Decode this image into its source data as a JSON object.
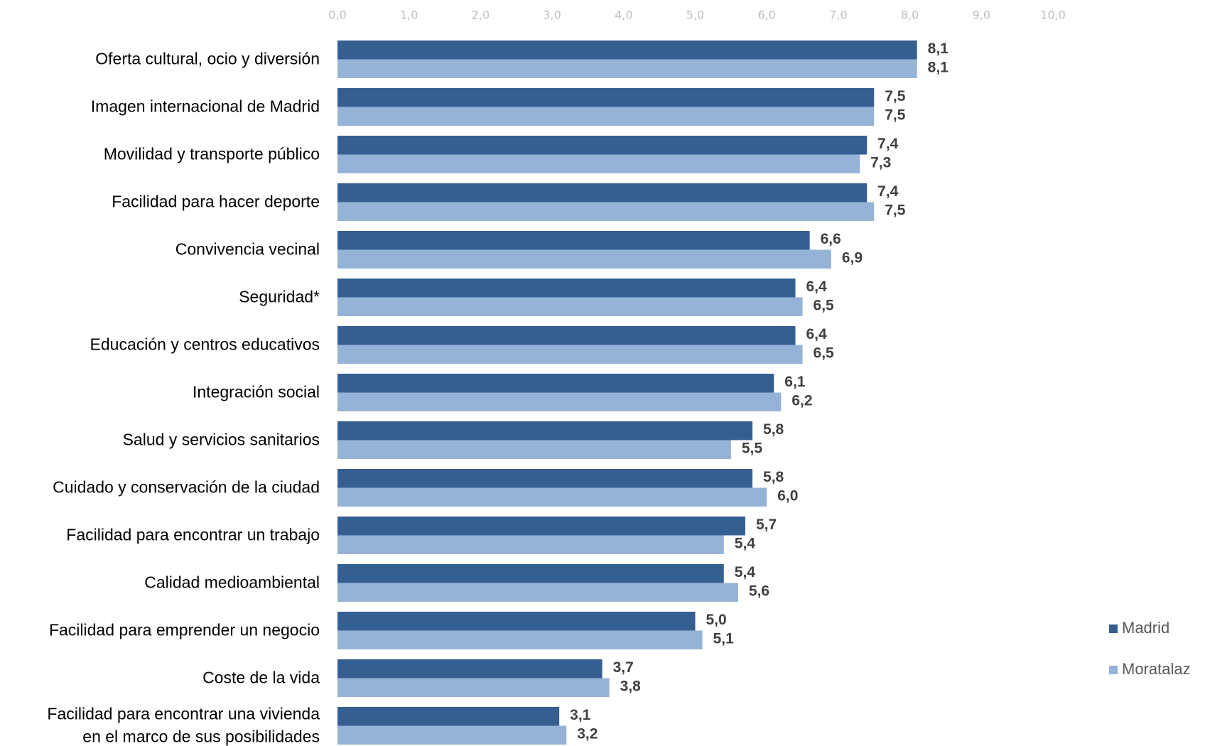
{
  "chart_data": {
    "type": "bar",
    "orientation": "horizontal",
    "categories": [
      "Oferta cultural, ocio y diversión",
      "Imagen internacional de Madrid",
      "Movilidad y transporte público",
      "Facilidad para hacer deporte",
      "Convivencia vecinal",
      "Seguridad*",
      "Educación y centros educativos",
      "Integración social",
      "Salud y servicios sanitarios",
      "Cuidado y conservación de la ciudad",
      "Facilidad para encontrar un trabajo",
      "Calidad medioambiental",
      "Facilidad para emprender un negocio",
      "Coste de la vida",
      "Facilidad para encontrar una vivienda\nen el marco de sus posibilidades"
    ],
    "series": [
      {
        "name": "Madrid",
        "color": "#365f91",
        "values": [
          8.1,
          7.5,
          7.4,
          7.4,
          6.6,
          6.4,
          6.4,
          6.1,
          5.8,
          5.8,
          5.7,
          5.4,
          5.0,
          3.7,
          3.1
        ],
        "value_labels": [
          "8,1",
          "7,5",
          "7,4",
          "7,4",
          "6,6",
          "6,4",
          "6,4",
          "6,1",
          "5,8",
          "5,8",
          "5,7",
          "5,4",
          "5,0",
          "3,7",
          "3,1"
        ]
      },
      {
        "name": "Moratalaz",
        "color": "#95b3d7",
        "values": [
          8.1,
          7.5,
          7.3,
          7.5,
          6.9,
          6.5,
          6.5,
          6.2,
          5.5,
          6.0,
          5.4,
          5.6,
          5.1,
          3.8,
          3.2
        ],
        "value_labels": [
          "8,1",
          "7,5",
          "7,3",
          "7,5",
          "6,9",
          "6,5",
          "6,5",
          "6,2",
          "5,5",
          "6,0",
          "5,4",
          "5,6",
          "5,1",
          "3,8",
          "3,2"
        ]
      }
    ],
    "xlim": [
      0,
      10
    ],
    "xticks": [
      {
        "value": 0,
        "label": "0,0"
      },
      {
        "value": 1,
        "label": "1,0"
      },
      {
        "value": 2,
        "label": "2,0"
      },
      {
        "value": 3,
        "label": "3,0"
      },
      {
        "value": 4,
        "label": "4,0"
      },
      {
        "value": 5,
        "label": "5,0"
      },
      {
        "value": 6,
        "label": "6,0"
      },
      {
        "value": 7,
        "label": "7,0"
      },
      {
        "value": 8,
        "label": "8,0"
      },
      {
        "value": 9,
        "label": "9,0"
      },
      {
        "value": 10,
        "label": "10,0"
      }
    ],
    "legend": "right"
  }
}
